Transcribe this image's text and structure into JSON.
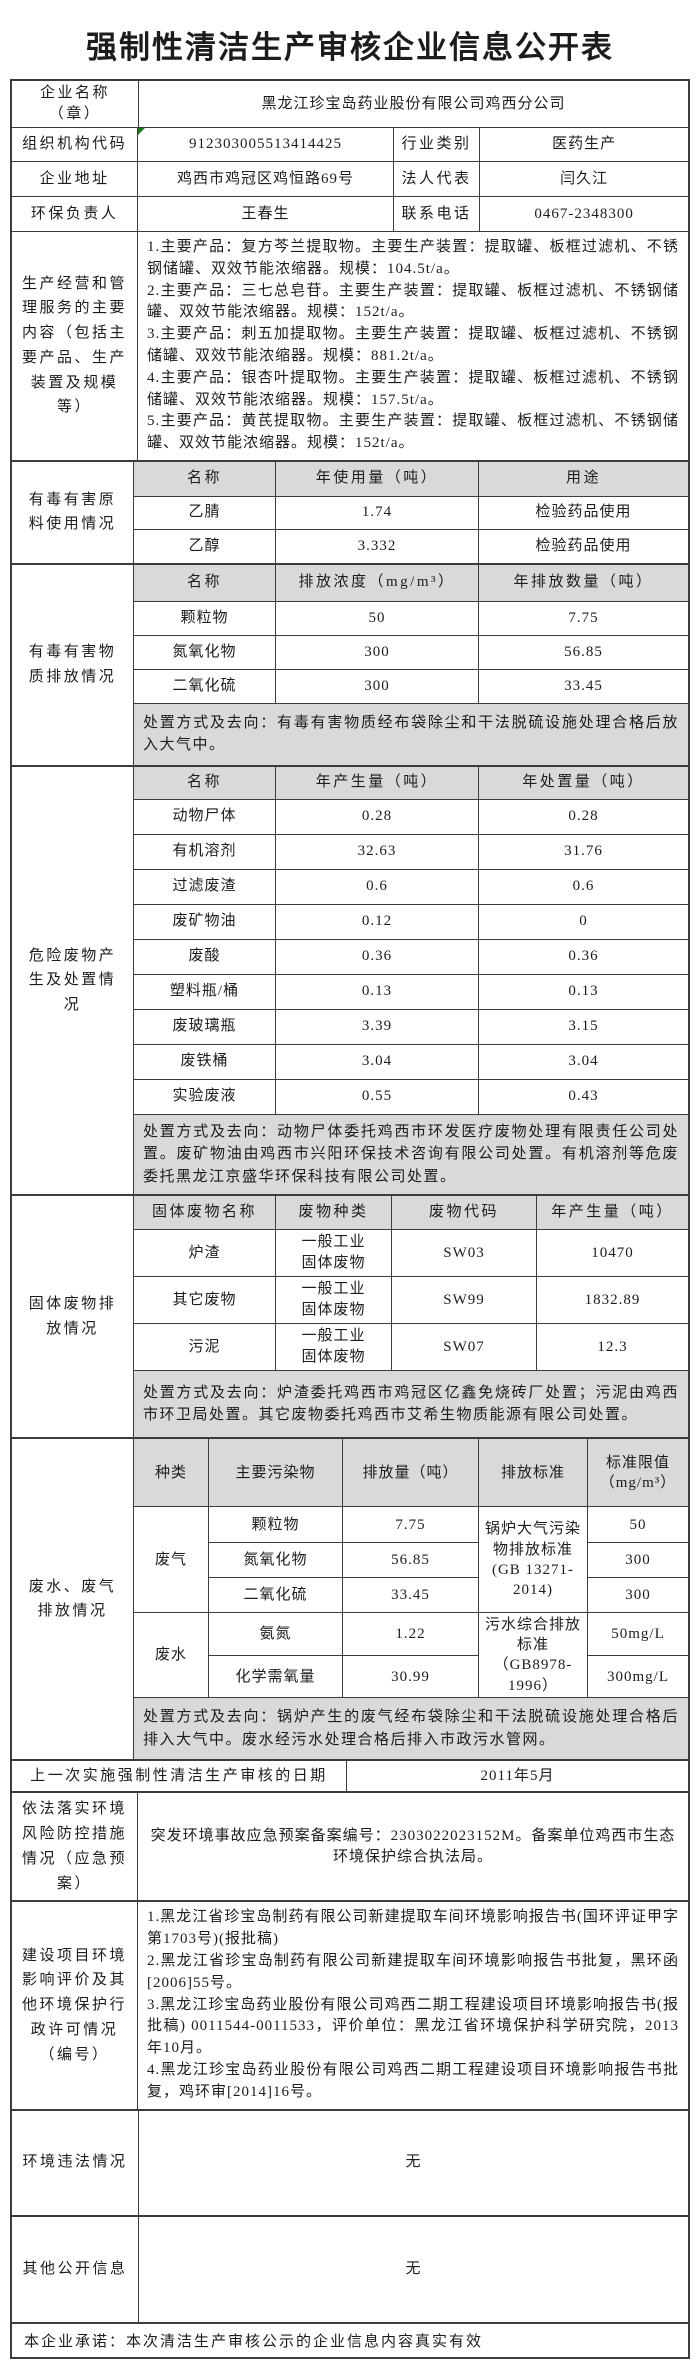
{
  "colors": {
    "header_bg": "#d9d9d9",
    "border": "#3c3c3c",
    "flag_green": "#1e7a1e"
  },
  "title": "强制性清洁生产审核企业信息公开表",
  "info": {
    "company_label": "企业名称（章）",
    "company_value": "黑龙江珍宝岛药业股份有限公司鸡西分公司",
    "org_code_label": "组织机构代码",
    "org_code_value": "912303005513414425",
    "industry_label": "行业类别",
    "industry_value": "医药生产",
    "address_label": "企业地址",
    "address_value": "鸡西市鸡冠区鸡恒路69号",
    "legal_rep_label": "法人代表",
    "legal_rep_value": "闫久江",
    "env_officer_label": "环保负责人",
    "env_officer_value": "王春生",
    "phone_label": "联系电话",
    "phone_value": "0467-2348300"
  },
  "production": {
    "label": "生产经营和管理服务的主要内容（包括主要产品、生产装置及规模等）",
    "lines": [
      "1.主要产品：复方芩兰提取物。主要生产装置：提取罐、板框过滤机、不锈钢储罐、双效节能浓缩器。规模：104.5t/a。",
      "2.主要产品：三七总皂苷。主要生产装置：提取罐、板框过滤机、不锈钢储罐、双效节能浓缩器。规模：152t/a。",
      "3.主要产品：刺五加提取物。主要生产装置：提取罐、板框过滤机、不锈钢储罐、双效节能浓缩器。规模：881.2t/a。",
      "4.主要产品：银杏叶提取物。主要生产装置：提取罐、板框过滤机、不锈钢储罐、双效节能浓缩器。规模：157.5t/a。",
      "5.主要产品：黄芪提取物。主要生产装置：提取罐、板框过滤机、不锈钢储罐、双效节能浓缩器。规模：152t/a。"
    ]
  },
  "toxic_raw": {
    "section_label": "有毒有害原料使用情况",
    "headers": [
      "名称",
      "年使用量（吨）",
      "用途"
    ],
    "rows": [
      [
        "乙腈",
        "1.74",
        "检验药品使用"
      ],
      [
        "乙醇",
        "3.332",
        "检验药品使用"
      ]
    ]
  },
  "toxic_emission": {
    "section_label": "有毒有害物质排放情况",
    "headers": [
      "名称",
      "排放浓度（mg/m³）",
      "年排放数量（吨）"
    ],
    "rows": [
      [
        "颗粒物",
        "50",
        "7.75"
      ],
      [
        "氮氧化物",
        "300",
        "56.85"
      ],
      [
        "二氧化硫",
        "300",
        "33.45"
      ]
    ],
    "disposal": "处置方式及去向：有毒有害物质经布袋除尘和干法脱硫设施处理合格后放入大气中。"
  },
  "hazardous": {
    "section_label": "危险废物产生及处置情况",
    "headers": [
      "名称",
      "年产生量（吨）",
      "年处置量（吨）"
    ],
    "rows": [
      [
        "动物尸体",
        "0.28",
        "0.28"
      ],
      [
        "有机溶剂",
        "32.63",
        "31.76"
      ],
      [
        "过滤废渣",
        "0.6",
        "0.6"
      ],
      [
        "废矿物油",
        "0.12",
        "0"
      ],
      [
        "废酸",
        "0.36",
        "0.36"
      ],
      [
        "塑料瓶/桶",
        "0.13",
        "0.13"
      ],
      [
        "废玻璃瓶",
        "3.39",
        "3.15"
      ],
      [
        "废铁桶",
        "3.04",
        "3.04"
      ],
      [
        "实验废液",
        "0.55",
        "0.43"
      ]
    ],
    "disposal": "处置方式及去向：动物尸体委托鸡西市环发医疗废物处理有限责任公司处置。废矿物油由鸡西市兴阳环保技术咨询有限公司处置。有机溶剂等危废委托黑龙江京盛华环保科技有限公司处置。"
  },
  "solid": {
    "section_label": "固体废物排放情况",
    "headers": [
      "固体废物名称",
      "废物种类",
      "废物代码",
      "年产生量（吨）"
    ],
    "rows": [
      [
        "炉渣",
        "一般工业\n固体废物",
        "SW03",
        "10470"
      ],
      [
        "其它废物",
        "一般工业\n固体废物",
        "SW99",
        "1832.89"
      ],
      [
        "污泥",
        "一般工业\n固体废物",
        "SW07",
        "12.3"
      ]
    ],
    "disposal": "处置方式及去向：炉渣委托鸡西市鸡冠区亿鑫免烧砖厂处置；污泥由鸡西市环卫局处置。其它废物委托鸡西市艾希生物质能源有限公司处置。"
  },
  "emissions": {
    "section_label": "废水、废气排放情况",
    "headers": [
      "种类",
      "主要污染物",
      "排放量（吨）",
      "排放标准",
      "标准限值\n（mg/m³）"
    ],
    "gas": {
      "type": "废气",
      "standard": "锅炉大气污染\n物排放标准\n(GB 13271-\n2014)",
      "rows": [
        [
          "颗粒物",
          "7.75",
          "50"
        ],
        [
          "氮氧化物",
          "56.85",
          "300"
        ],
        [
          "二氧化硫",
          "33.45",
          "300"
        ]
      ]
    },
    "water": {
      "type": "废水",
      "standard": "污水综合排放\n标准\n（GB8978-\n1996）",
      "rows": [
        [
          "氨氮",
          "1.22",
          "50mg/L"
        ],
        [
          "化学需氧量",
          "30.99",
          "300mg/L"
        ]
      ]
    },
    "disposal": "处置方式及去向：锅炉产生的废气经布袋除尘和干法脱硫设施处理合格后排入大气中。废水经污水处理合格后排入市政污水管网。"
  },
  "audit": {
    "label": "上一次实施强制性清洁生产审核的日期",
    "value": "2011年5月"
  },
  "emergency": {
    "label": "依法落实环境风险防控措施情况（应急预案）",
    "value": "突发环境事故应急预案备案编号：2303022023152M。备案单位鸡西市生态环境保护综合执法局。"
  },
  "construction": {
    "label": "建设项目环境影响评价及其他环境保护行政许可情况（编号）",
    "lines": [
      "1.黑龙江省珍宝岛制药有限公司新建提取车间环境影响报告书(国环评证甲字第1703号)(报批稿)",
      "2.黑龙江省珍宝岛制药有限公司新建提取车间环境影响报告书批复，黑环函[2006]55号。",
      "3.黑龙江珍宝岛药业股份有限公司鸡西二期工程建设项目环境影响报告书(报批稿) 0011544-0011533，评价单位：黑龙江省环境保护科学研究院，2013年10月。",
      "4.黑龙江珍宝岛药业股份有限公司鸡西二期工程建设项目环境影响报告书批复，鸡环审[2014]16号。"
    ]
  },
  "violation": {
    "label": "环境违法情况",
    "value": "无"
  },
  "other_info": {
    "label": "其他公开信息",
    "value": "无"
  },
  "promise": "本企业承诺：本次清洁生产审核公示的企业信息内容真实有效"
}
